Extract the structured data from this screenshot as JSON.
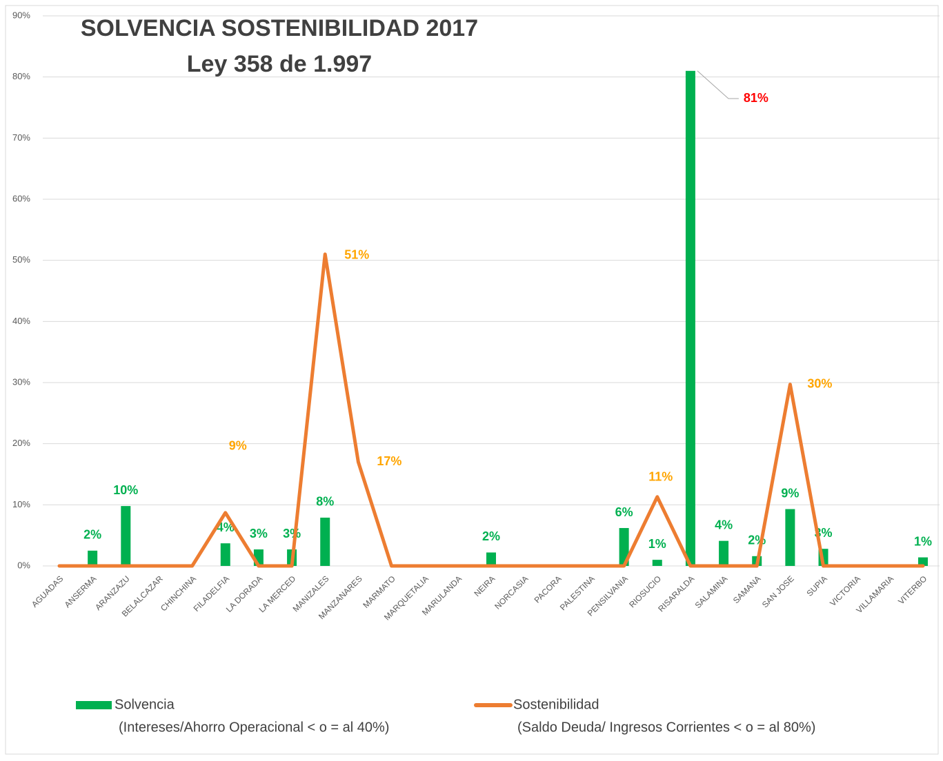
{
  "chart_data": {
    "type": "bar-line",
    "title": "SOLVENCIA SOSTENIBILIDAD 2017",
    "subtitle": "Ley 358 de 1.997",
    "categories": [
      "AGUADAS",
      "ANSERMA",
      "ARANZAZU",
      "BELALCAZAR",
      "CHINCHINA",
      "FILADELFIA",
      "LA DORADA",
      "LA MERCED",
      "MANIZALES",
      "MANZANARES",
      "MARMATO",
      "MARQUETALIA",
      "MARULANDA",
      "NEIRA",
      "NORCASIA",
      "PACORA",
      "PALESTINA",
      "PENSILVANIA",
      "RIOSUCIO",
      "RISARALDA",
      "SALAMINA",
      "SAMANA",
      "SAN JOSE",
      "SUPIA",
      "VICTORIA",
      "VILLAMARIA",
      "VITERBO"
    ],
    "series": [
      {
        "name": "Solvencia",
        "description": "(Intereses/Ahorro Operacional < o = al 40%)",
        "type": "bar",
        "color": "#00b050",
        "label_color": "#00b050",
        "max_label_color": "#ff0000",
        "values": [
          0,
          2.5,
          9.8,
          0,
          0,
          3.7,
          2.7,
          2.7,
          7.9,
          0,
          0,
          0,
          0,
          2.2,
          0,
          0,
          0,
          6.2,
          1,
          81,
          4.1,
          1.6,
          9.3,
          2.8,
          0,
          0,
          1.4
        ],
        "value_labels": [
          null,
          "2%",
          "10%",
          null,
          null,
          "4%",
          "3%",
          "3%",
          "8%",
          null,
          null,
          null,
          null,
          "2%",
          null,
          null,
          null,
          "6%",
          "1%",
          "81%",
          "4%",
          "2%",
          "9%",
          "3%",
          null,
          null,
          "1%"
        ]
      },
      {
        "name": "Sostenibilidad",
        "description": "(Saldo Deuda/ Ingresos Corrientes < o = al 80%)",
        "type": "line",
        "color": "#ed7d31",
        "label_color": "#ffa500",
        "values": [
          0,
          0,
          0,
          0,
          0,
          8.7,
          0,
          0,
          51,
          17,
          0,
          0,
          0,
          0,
          0,
          0,
          0,
          0,
          11.3,
          0,
          0,
          0,
          29.7,
          0,
          0,
          0,
          0
        ],
        "value_labels": [
          null,
          null,
          null,
          null,
          null,
          "9%",
          null,
          null,
          "51%",
          "17%",
          null,
          null,
          null,
          null,
          null,
          null,
          null,
          null,
          "11%",
          null,
          null,
          null,
          "30%",
          null,
          null,
          null,
          null
        ]
      }
    ],
    "ylim": [
      0,
      90
    ],
    "yticks": [
      {
        "value": 0,
        "label": "0%"
      },
      {
        "value": 10,
        "label": "10%"
      },
      {
        "value": 20,
        "label": "20%"
      },
      {
        "value": 30,
        "label": "30%"
      },
      {
        "value": 40,
        "label": "40%"
      },
      {
        "value": 50,
        "label": "50%"
      },
      {
        "value": 60,
        "label": "60%"
      },
      {
        "value": 70,
        "label": "70%"
      },
      {
        "value": 80,
        "label": "80%"
      },
      {
        "value": 90,
        "label": "90%"
      }
    ],
    "grid": true
  }
}
